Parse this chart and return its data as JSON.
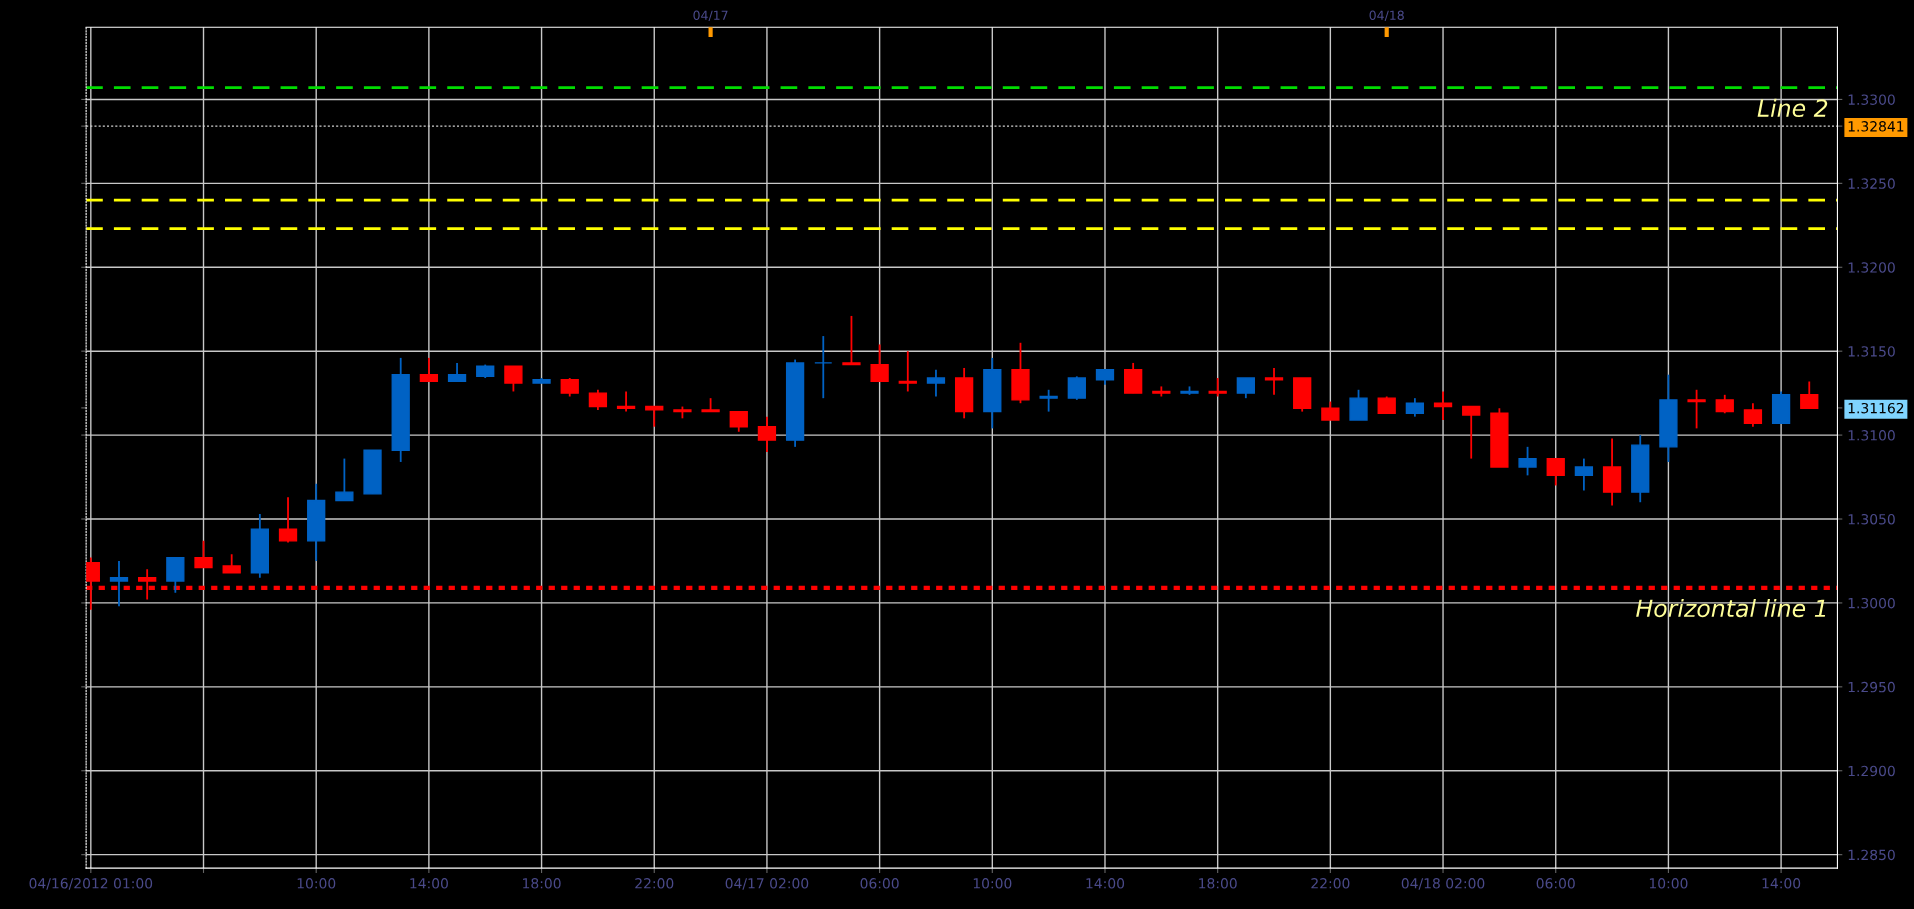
{
  "chart_data": {
    "type": "candlestick",
    "x": [
      "2012-04-16T02:00",
      "2012-04-16T03:00",
      "2012-04-16T04:00",
      "2012-04-16T05:00",
      "2012-04-16T06:00",
      "2012-04-16T07:00",
      "2012-04-16T08:00",
      "2012-04-16T09:00",
      "2012-04-16T10:00",
      "2012-04-16T11:00",
      "2012-04-16T12:00",
      "2012-04-16T13:00",
      "2012-04-16T14:00",
      "2012-04-16T15:00",
      "2012-04-16T16:00",
      "2012-04-16T17:00",
      "2012-04-16T18:00",
      "2012-04-16T19:00",
      "2012-04-16T20:00",
      "2012-04-16T21:00",
      "2012-04-16T22:00",
      "2012-04-16T23:00",
      "2012-04-17T00:00",
      "2012-04-17T01:00",
      "2012-04-17T02:00",
      "2012-04-17T03:00",
      "2012-04-17T04:00",
      "2012-04-17T05:00",
      "2012-04-17T06:00",
      "2012-04-17T07:00",
      "2012-04-17T08:00",
      "2012-04-17T09:00",
      "2012-04-17T10:00",
      "2012-04-17T11:00",
      "2012-04-17T12:00",
      "2012-04-17T13:00",
      "2012-04-17T14:00",
      "2012-04-17T15:00",
      "2012-04-17T16:00",
      "2012-04-17T17:00",
      "2012-04-17T18:00",
      "2012-04-17T19:00",
      "2012-04-17T20:00",
      "2012-04-17T21:00",
      "2012-04-17T22:00",
      "2012-04-17T23:00",
      "2012-04-18T00:00",
      "2012-04-18T01:00",
      "2012-04-18T02:00",
      "2012-04-18T03:00",
      "2012-04-18T04:00",
      "2012-04-18T05:00",
      "2012-04-18T06:00",
      "2012-04-18T07:00",
      "2012-04-18T08:00",
      "2012-04-18T09:00",
      "2012-04-18T10:00",
      "2012-04-18T11:00",
      "2012-04-18T12:00",
      "2012-04-18T13:00",
      "2012-04-18T14:00",
      "2012-04-18T15:00"
    ],
    "ohlc": [
      [
        1.3024,
        1.3027,
        1.2996,
        1.3013
      ],
      [
        1.3013,
        1.3025,
        1.2998,
        1.3015
      ],
      [
        1.3015,
        1.302,
        1.3002,
        1.3013
      ],
      [
        1.3013,
        1.3027,
        1.3006,
        1.3027
      ],
      [
        1.3027,
        1.3037,
        1.3021,
        1.3021
      ],
      [
        1.3022,
        1.3029,
        1.3018,
        1.3018
      ],
      [
        1.3018,
        1.3053,
        1.3015,
        1.3044
      ],
      [
        1.3044,
        1.3063,
        1.3036,
        1.3037
      ],
      [
        1.3037,
        1.3071,
        1.3025,
        1.3061
      ],
      [
        1.3061,
        1.3086,
        1.3061,
        1.3066
      ],
      [
        1.3065,
        1.3091,
        1.3065,
        1.3091
      ],
      [
        1.3091,
        1.3146,
        1.3084,
        1.3136
      ],
      [
        1.3136,
        1.3146,
        1.3132,
        1.3132
      ],
      [
        1.3132,
        1.3143,
        1.3132,
        1.3136
      ],
      [
        1.3135,
        1.3142,
        1.3134,
        1.3141
      ],
      [
        1.3141,
        1.3141,
        1.3126,
        1.3131
      ],
      [
        1.3131,
        1.3134,
        1.3131,
        1.3133
      ],
      [
        1.3133,
        1.3134,
        1.3123,
        1.3125
      ],
      [
        1.3125,
        1.3127,
        1.3115,
        1.3117
      ],
      [
        1.3117,
        1.3126,
        1.3114,
        1.3116
      ],
      [
        1.3117,
        1.3117,
        1.3105,
        1.3115
      ],
      [
        1.3115,
        1.3117,
        1.311,
        1.3114
      ],
      [
        1.3115,
        1.3122,
        1.3114,
        1.3114
      ],
      [
        1.3114,
        1.3114,
        1.3102,
        1.3105
      ],
      [
        1.3105,
        1.3111,
        1.309,
        1.3097
      ],
      [
        1.3097,
        1.3145,
        1.3093,
        1.3143
      ],
      [
        1.3143,
        1.3159,
        1.3122,
        1.3143
      ],
      [
        1.3143,
        1.3171,
        1.3142,
        1.3142
      ],
      [
        1.3142,
        1.3154,
        1.3132,
        1.3132
      ],
      [
        1.3132,
        1.315,
        1.3126,
        1.3131
      ],
      [
        1.3131,
        1.3139,
        1.3123,
        1.3134
      ],
      [
        1.3134,
        1.314,
        1.311,
        1.3114
      ],
      [
        1.3114,
        1.3146,
        1.3104,
        1.3139
      ],
      [
        1.3139,
        1.3155,
        1.3119,
        1.3121
      ],
      [
        1.3122,
        1.3127,
        1.3114,
        1.3123
      ],
      [
        1.3122,
        1.3135,
        1.3121,
        1.3134
      ],
      [
        1.3133,
        1.3139,
        1.313,
        1.3139
      ],
      [
        1.3139,
        1.3143,
        1.3125,
        1.3125
      ],
      [
        1.3126,
        1.3129,
        1.3123,
        1.3125
      ],
      [
        1.3125,
        1.3129,
        1.3124,
        1.3126
      ],
      [
        1.3126,
        1.3134,
        1.3123,
        1.3125
      ],
      [
        1.3125,
        1.3134,
        1.3122,
        1.3134
      ],
      [
        1.3134,
        1.314,
        1.3124,
        1.3133
      ],
      [
        1.3134,
        1.3134,
        1.3114,
        1.3116
      ],
      [
        1.3116,
        1.312,
        1.3109,
        1.3109
      ],
      [
        1.3109,
        1.3127,
        1.3109,
        1.3122
      ],
      [
        1.3122,
        1.3123,
        1.3113,
        1.3113
      ],
      [
        1.3113,
        1.3122,
        1.3111,
        1.3119
      ],
      [
        1.3119,
        1.3126,
        1.3109,
        1.3117
      ],
      [
        1.3117,
        1.3117,
        1.3086,
        1.3112
      ],
      [
        1.3113,
        1.3116,
        1.3081,
        1.3081
      ],
      [
        1.3081,
        1.3093,
        1.3076,
        1.3086
      ],
      [
        1.3086,
        1.3086,
        1.307,
        1.3076
      ],
      [
        1.3076,
        1.3086,
        1.3067,
        1.3081
      ],
      [
        1.3081,
        1.3098,
        1.3058,
        1.3066
      ],
      [
        1.3066,
        1.31,
        1.306,
        1.3094
      ],
      [
        1.3093,
        1.3136,
        1.3084,
        1.3121
      ],
      [
        1.3121,
        1.3127,
        1.3104,
        1.312
      ],
      [
        1.3121,
        1.3124,
        1.3113,
        1.3114
      ],
      [
        1.3115,
        1.3119,
        1.3105,
        1.3107
      ],
      [
        1.3107,
        1.3126,
        1.3107,
        1.3124
      ],
      [
        1.3124,
        1.3132,
        1.3116,
        1.3116
      ]
    ],
    "colors": [
      "#ff0000",
      "#0062c4",
      "#ff0000",
      "#0062c4",
      "#ff0000",
      "#ff0000",
      "#0062c4",
      "#ff0000",
      "#0062c4",
      "#0062c4",
      "#0062c4",
      "#0062c4",
      "#ff0000",
      "#0062c4",
      "#0062c4",
      "#ff0000",
      "#0062c4",
      "#ff0000",
      "#ff0000",
      "#ff0000",
      "#ff0000",
      "#ff0000",
      "#ff0000",
      "#ff0000",
      "#ff0000",
      "#0062c4",
      "#0062c4",
      "#ff0000",
      "#ff0000",
      "#ff0000",
      "#0062c4",
      "#ff0000",
      "#0062c4",
      "#ff0000",
      "#0062c4",
      "#0062c4",
      "#0062c4",
      "#ff0000",
      "#ff0000",
      "#0062c4",
      "#ff0000",
      "#0062c4",
      "#ff0000",
      "#ff0000",
      "#ff0000",
      "#0062c4",
      "#ff0000",
      "#0062c4",
      "#ff0000",
      "#ff0000",
      "#ff0000",
      "#0062c4",
      "#ff0000",
      "#0062c4",
      "#ff0000",
      "#0062c4",
      "#0062c4",
      "#ff0000",
      "#ff0000",
      "#ff0000",
      "#0062c4",
      "#ff0000"
    ],
    "xlim": [
      "2012-04-16T01:50",
      "2012-04-18T16:00"
    ],
    "xticks": [
      {
        "value": "2012-04-16T02:00",
        "label": "04/16/2012 01:00"
      },
      {
        "value": "2012-04-16T06:00",
        "label": null
      },
      {
        "value": "2012-04-16T10:00",
        "label": "10:00"
      },
      {
        "value": "2012-04-16T14:00",
        "label": "14:00"
      },
      {
        "value": "2012-04-16T18:00",
        "label": "18:00"
      },
      {
        "value": "2012-04-16T22:00",
        "label": "22:00"
      },
      {
        "value": "2012-04-17T02:00",
        "label": "04/17 02:00"
      },
      {
        "value": "2012-04-17T06:00",
        "label": "06:00"
      },
      {
        "value": "2012-04-17T10:00",
        "label": "10:00"
      },
      {
        "value": "2012-04-17T14:00",
        "label": "14:00"
      },
      {
        "value": "2012-04-17T18:00",
        "label": "18:00"
      },
      {
        "value": "2012-04-17T22:00",
        "label": "22:00"
      },
      {
        "value": "2012-04-18T02:00",
        "label": "04/18 02:00"
      },
      {
        "value": "2012-04-18T06:00",
        "label": "06:00"
      },
      {
        "value": "2012-04-18T10:00",
        "label": "10:00"
      },
      {
        "value": "2012-04-18T14:00",
        "label": "14:00"
      }
    ],
    "x2lim": [
      "2012-04-16T01:50",
      "2012-04-18T16:00"
    ],
    "x2ticks": [
      {
        "value": "2012-04-17T00:00",
        "label": "04/17"
      },
      {
        "value": "2012-04-18T00:00",
        "label": "04/18"
      }
    ],
    "ylim": [
      1.2842,
      1.3343
    ],
    "yticks": [
      {
        "value": 1.285,
        "label": "1.2850"
      },
      {
        "value": 1.29,
        "label": "1.2900"
      },
      {
        "value": 1.295,
        "label": "1.2950"
      },
      {
        "value": 1.3,
        "label": "1.3000"
      },
      {
        "value": 1.305,
        "label": "1.3050"
      },
      {
        "value": 1.31,
        "label": "1.3100"
      },
      {
        "value": 1.315,
        "label": "1.3150"
      },
      {
        "value": 1.32,
        "label": "1.3200"
      },
      {
        "value": 1.325,
        "label": "1.3250"
      },
      {
        "value": 1.33,
        "label": "1.3300"
      },
      {
        "value": 1.32841,
        "label": "1.32841"
      },
      {
        "value": 1.31162,
        "label": "1.31162"
      }
    ],
    "ref_lines": [
      {
        "axis": "y",
        "value": 1.3307,
        "label": "Line 2",
        "color": "#00dd00",
        "line_style": "dashed"
      },
      {
        "axis": "y",
        "value": 1.32841,
        "color": "#d0d0d0",
        "line_style": "dotted"
      },
      {
        "axis": "y",
        "value": 1.324,
        "color": "#ffff00",
        "line_style": "dashed"
      },
      {
        "axis": "y",
        "value": 1.3223,
        "color": "#ffff00",
        "line_style": "dashed"
      },
      {
        "axis": "y",
        "value": 1.3009,
        "label": "Horizontal line 1",
        "color": "#ff0000",
        "line_style": "dotted"
      }
    ],
    "grid": true
  }
}
